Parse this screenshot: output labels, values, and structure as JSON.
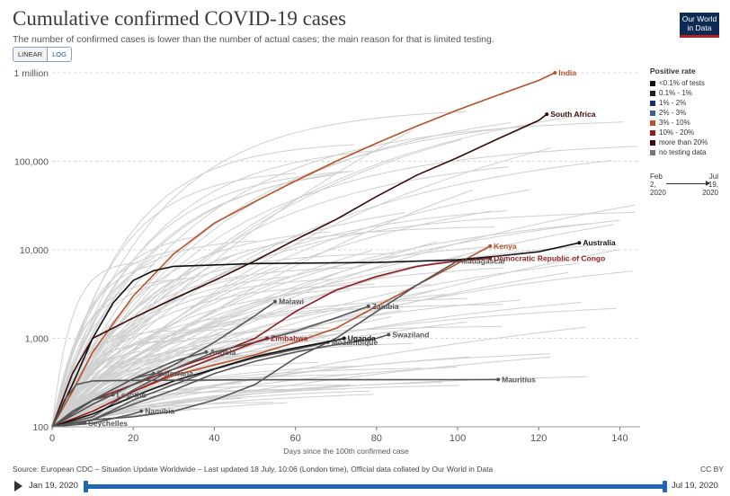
{
  "header": {
    "title": "Cumulative confirmed COVID-19 cases",
    "subtitle": "The number of confirmed cases is lower than the number of actual cases; the main reason for that is limited testing.",
    "logo_line1": "Our World",
    "logo_line2": "in Data"
  },
  "scale_toggle": {
    "linear_label": "LINEAR",
    "log_label": "LOG",
    "selected": "LOG"
  },
  "legend": {
    "title": "Positive rate",
    "items": [
      {
        "label": "<0.1% of tests",
        "color": "#111111"
      },
      {
        "label": "0.1% - 1%",
        "color": "#1f1f1f"
      },
      {
        "label": "1% - 2%",
        "color": "#1d2a6b"
      },
      {
        "label": "2% - 3%",
        "color": "#3f5f8a"
      },
      {
        "label": "3% - 10%",
        "color": "#b5522a"
      },
      {
        "label": "10% - 20%",
        "color": "#8f1d1d"
      },
      {
        "label": "more than 20%",
        "color": "#3a0a0a"
      },
      {
        "label": "no testing data",
        "color": "#777777"
      }
    ]
  },
  "timeline_legend": {
    "start_line1": "Feb",
    "start_line2": "2,",
    "start_line3": "2020",
    "end_line1": "Jul",
    "end_line2": "19,",
    "end_line3": "2020"
  },
  "footer": {
    "source": "Source: European CDC – Situation Update Worldwide – Last updated 18 July, 10:06 (London time), Official data collated by Our World in Data",
    "license": "CC BY"
  },
  "timeline": {
    "start_date": "Jan 19, 2020",
    "end_date": "Jul 19, 2020",
    "start_fraction": 0.0,
    "end_fraction": 1.0
  },
  "chart_data": {
    "type": "line",
    "title": "Cumulative confirmed COVID-19 cases",
    "xlabel": "Days since the 100th confirmed case",
    "ylabel": "",
    "y_scale": "log",
    "xlim": [
      0,
      145
    ],
    "ylim": [
      100,
      1000000
    ],
    "x_ticks": [
      0,
      20,
      40,
      60,
      80,
      100,
      120,
      140
    ],
    "x_tick_labels": [
      "0",
      "20",
      "40",
      "60",
      "80",
      "100",
      "120",
      "140"
    ],
    "y_ticks": [
      100,
      1000,
      10000,
      100000,
      1000000
    ],
    "y_tick_labels": [
      "100",
      "1,000",
      "10,000",
      "100,000",
      "1 million"
    ],
    "grid": "horizontal dashed",
    "legend_position": "right",
    "series": [
      {
        "name": "India",
        "color": "#b5522a",
        "x": [
          0,
          5,
          10,
          20,
          30,
          40,
          50,
          60,
          70,
          80,
          90,
          100,
          110,
          120,
          124
        ],
        "y": [
          100,
          250,
          700,
          3000,
          9000,
          20000,
          35000,
          60000,
          100000,
          160000,
          250000,
          380000,
          560000,
          820000,
          1000000
        ]
      },
      {
        "name": "South Africa",
        "color": "#3a0a0a",
        "x": [
          0,
          5,
          10,
          20,
          30,
          40,
          50,
          60,
          70,
          80,
          90,
          100,
          110,
          120,
          122
        ],
        "y": [
          100,
          400,
          1000,
          1700,
          2800,
          4500,
          7500,
          13000,
          22000,
          40000,
          70000,
          110000,
          180000,
          290000,
          340000
        ]
      },
      {
        "name": "Kenya",
        "color": "#b5522a",
        "x": [
          0,
          10,
          20,
          30,
          40,
          50,
          60,
          70,
          80,
          90,
          100,
          108
        ],
        "y": [
          100,
          150,
          250,
          380,
          500,
          650,
          900,
          1300,
          2300,
          4000,
          7000,
          11000
        ]
      },
      {
        "name": "Democratic Republic of Congo",
        "color": "#8f1d1d",
        "x": [
          0,
          10,
          20,
          30,
          40,
          50,
          60,
          70,
          80,
          90,
          100,
          108
        ],
        "y": [
          100,
          200,
          300,
          450,
          650,
          1000,
          2000,
          3500,
          5000,
          6500,
          7500,
          8000
        ]
      },
      {
        "name": "Madagascar",
        "color": "#555555",
        "x": [
          0,
          10,
          20,
          30,
          40,
          50,
          60,
          70,
          80,
          90,
          100
        ],
        "y": [
          100,
          120,
          130,
          150,
          200,
          300,
          600,
          1000,
          2000,
          4000,
          7500
        ]
      },
      {
        "name": "Australia",
        "color": "#111111",
        "x": [
          0,
          5,
          10,
          15,
          20,
          25,
          30,
          50,
          80,
          100,
          110,
          120,
          130
        ],
        "y": [
          100,
          300,
          1000,
          2500,
          4500,
          5800,
          6500,
          7000,
          7200,
          7700,
          8500,
          9500,
          12000
        ]
      },
      {
        "name": "Malawi",
        "color": "#555555",
        "x": [
          0,
          10,
          20,
          30,
          40,
          50,
          55
        ],
        "y": [
          100,
          180,
          300,
          500,
          900,
          1800,
          2600
        ]
      },
      {
        "name": "Zambia",
        "color": "#555555",
        "x": [
          0,
          10,
          20,
          30,
          40,
          50,
          60,
          70,
          78
        ],
        "y": [
          100,
          130,
          260,
          450,
          700,
          900,
          1200,
          1700,
          2300
        ]
      },
      {
        "name": "Namibia",
        "color": "#555555",
        "x": [
          0,
          10,
          20,
          22
        ],
        "y": [
          100,
          110,
          140,
          150
        ]
      },
      {
        "name": "Zimbabwe",
        "color": "#8f1d1d",
        "x": [
          0,
          10,
          20,
          30,
          40,
          50,
          53
        ],
        "y": [
          100,
          150,
          250,
          400,
          600,
          900,
          1000
        ]
      },
      {
        "name": "Mozambique",
        "color": "#555555",
        "x": [
          0,
          10,
          20,
          30,
          40,
          50,
          60,
          68
        ],
        "y": [
          100,
          120,
          200,
          300,
          450,
          600,
          750,
          900
        ]
      },
      {
        "name": "Swaziland",
        "color": "#555555",
        "x": [
          0,
          10,
          20,
          30,
          40,
          50,
          60,
          70,
          80,
          83
        ],
        "y": [
          100,
          120,
          180,
          260,
          400,
          550,
          700,
          850,
          1000,
          1100
        ]
      },
      {
        "name": "Uganda",
        "color": "#111111",
        "x": [
          0,
          10,
          20,
          30,
          40,
          50,
          60,
          70,
          72
        ],
        "y": [
          100,
          140,
          220,
          330,
          450,
          620,
          780,
          950,
          1000
        ]
      },
      {
        "name": "Botswana",
        "color": "#555555",
        "x": [
          0,
          10,
          20,
          25
        ],
        "y": [
          100,
          200,
          350,
          400
        ]
      },
      {
        "name": "Angola",
        "color": "#555555",
        "x": [
          0,
          10,
          20,
          30,
          38
        ],
        "y": [
          100,
          200,
          350,
          550,
          700
        ]
      },
      {
        "name": "Lesotho",
        "color": "#555555",
        "x": [
          0,
          5,
          10,
          15
        ],
        "y": [
          100,
          150,
          200,
          230
        ]
      },
      {
        "name": "Mauritius",
        "color": "#555555",
        "x": [
          0,
          3,
          6,
          10,
          20,
          40,
          60,
          80,
          100,
          110
        ],
        "y": [
          100,
          200,
          300,
          330,
          335,
          338,
          340,
          340,
          341,
          342
        ]
      },
      {
        "name": "Seychelles",
        "color": "#555555",
        "x": [
          0,
          2,
          4,
          6,
          8
        ],
        "y": [
          100,
          105,
          108,
          110,
          110
        ]
      }
    ]
  }
}
